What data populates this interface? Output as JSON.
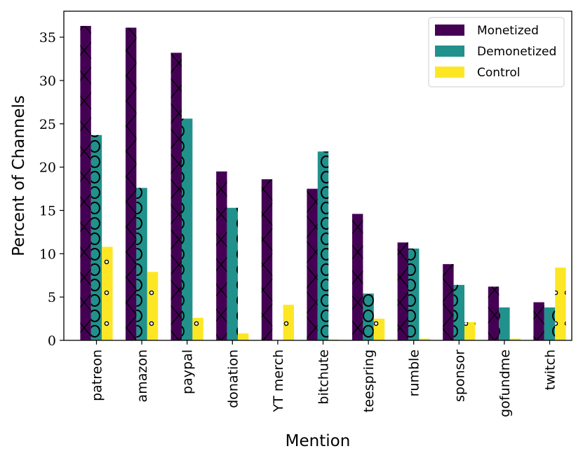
{
  "chart_data": {
    "type": "bar",
    "title": "",
    "xlabel": "Mention",
    "ylabel": "Percent of Channels",
    "ylim": [
      0,
      38
    ],
    "yticks": [
      0,
      5,
      10,
      15,
      20,
      25,
      30,
      35
    ],
    "grid": false,
    "legend_position": "top-right",
    "categories": [
      "patreon",
      "amazon",
      "paypal",
      "donation",
      "YT  merch",
      "bitchute",
      "teespring",
      "rumble",
      "sponsor",
      "gofundme",
      "twitch"
    ],
    "series": [
      {
        "name": "Monetized",
        "color": "#440154",
        "hatch": "x",
        "values": [
          36.3,
          36.1,
          33.2,
          19.5,
          18.6,
          17.5,
          14.6,
          11.3,
          8.8,
          6.2,
          4.4
        ]
      },
      {
        "name": "Demonetized",
        "color": "#21918c",
        "hatch": "o",
        "values": [
          23.7,
          17.6,
          25.6,
          15.3,
          0,
          21.8,
          5.4,
          10.6,
          6.4,
          3.8,
          3.8
        ]
      },
      {
        "name": "Control",
        "color": "#fde725",
        "hatch": ".",
        "values": [
          10.8,
          7.9,
          2.6,
          0.8,
          4.1,
          0.1,
          2.5,
          0.2,
          2.1,
          0.2,
          8.4
        ]
      }
    ]
  }
}
